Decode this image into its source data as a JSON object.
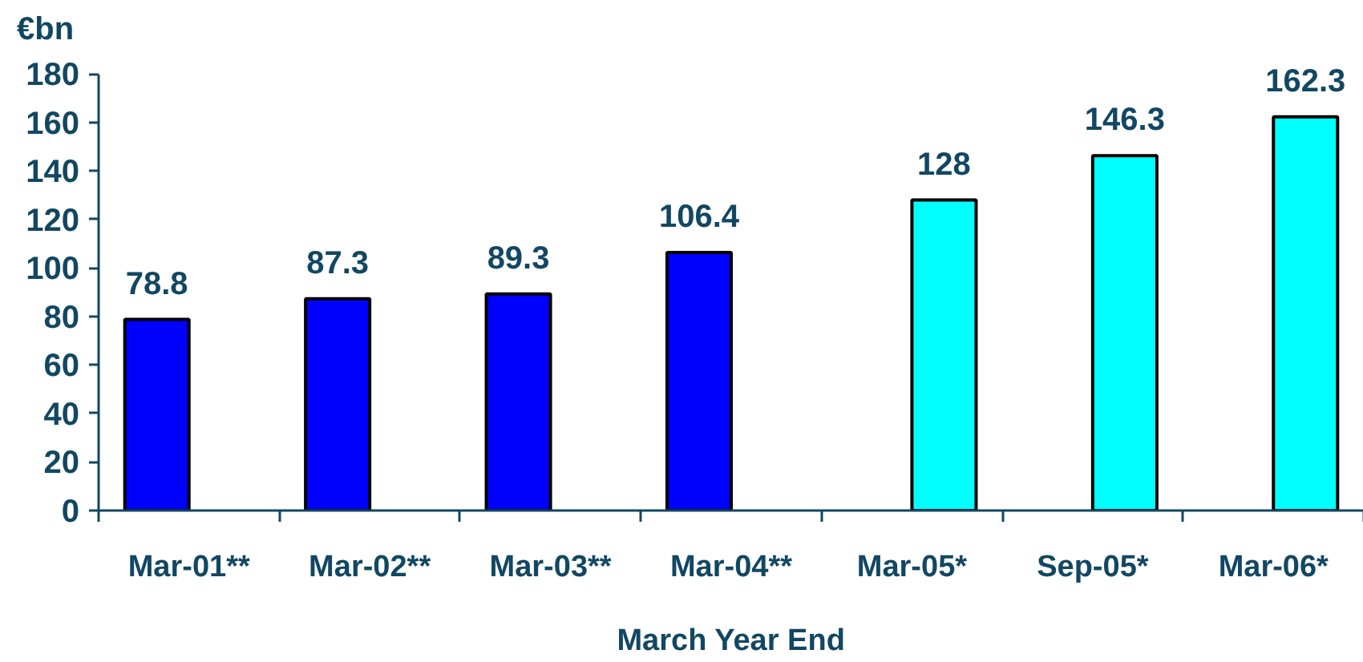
{
  "chart_data": {
    "type": "bar",
    "ylabel": "€bn",
    "xlabel": "March Year End",
    "categories": [
      "Mar-01**",
      "Mar-02**",
      "Mar-03**",
      "Mar-04**",
      "Mar-05*",
      "Sep-05*",
      "Mar-06*"
    ],
    "series": [
      {
        "color": "#0000ff",
        "values": [
          78.8,
          87.3,
          89.3,
          106.4,
          null,
          null,
          null
        ]
      },
      {
        "color": "#00ffff",
        "values": [
          null,
          null,
          null,
          null,
          128,
          146.3,
          162.3
        ]
      }
    ],
    "ylim": [
      0,
      180
    ],
    "yticks": [
      0,
      20,
      40,
      60,
      80,
      100,
      120,
      140,
      160,
      180
    ],
    "data_labels": true,
    "grid": false
  }
}
